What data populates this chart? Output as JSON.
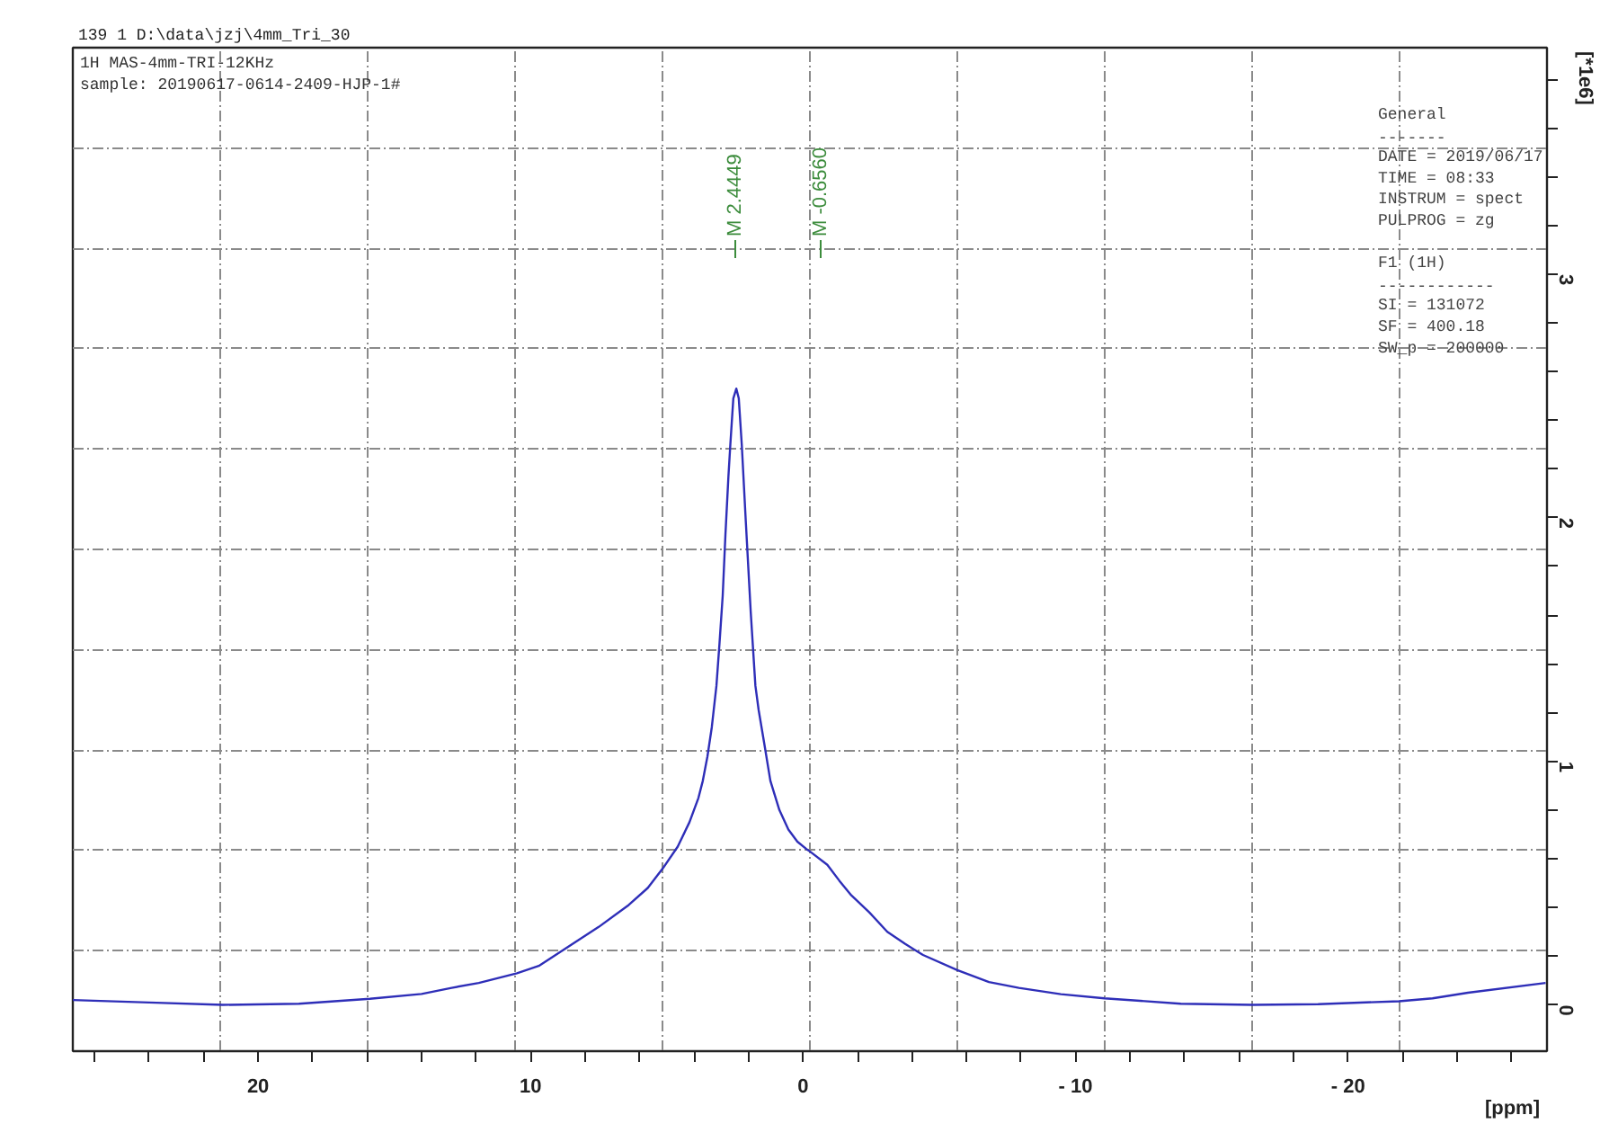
{
  "chart_data": {
    "type": "line",
    "title": "139  1  D:\\data\\jzj\\4mm_Tri_30",
    "subtitle": "1H MAS-4mm-TRI-12KHz\nsample: 20190617-0614-2409-HJP-1#",
    "xlabel": "[ppm]",
    "ylabel": "[*1e6]",
    "annotations": [
      "General\n-------\nDATE = 2019/06/17\nTIME = 08:33\nINSTRUM = spect\nPULPROG = zg",
      "F1 (1H)\n------------\nSI =  131072\nSF =  400.18\nSW_p =  200000",
      "M 2.4449",
      "M -0.6560"
    ],
    "x": [
      26.8,
      24.0,
      21.3,
      18.5,
      15.9,
      14.0,
      12.9,
      11.9,
      10.5,
      9.7,
      8.6,
      7.5,
      6.4,
      5.7,
      5.15,
      4.6,
      4.17,
      3.84,
      3.68,
      3.51,
      3.35,
      3.18,
      3.07,
      2.95,
      2.85,
      2.74,
      2.67,
      2.56,
      2.45,
      2.36,
      2.25,
      2.1,
      1.92,
      1.75,
      1.63,
      1.42,
      1.2,
      0.87,
      0.54,
      0.21,
      -0.12,
      -0.25,
      -0.89,
      -1.33,
      -1.77,
      -2.43,
      -3.09,
      -3.75,
      -4.4,
      -5.66,
      -6.82,
      -7.92,
      -9.46,
      -11.06,
      -13.86,
      -16.49,
      -18.9,
      -21.87,
      -23.1,
      -24.4,
      -27.25
    ],
    "values": [
      0.02,
      0.01,
      0.0,
      0.005,
      0.025,
      0.045,
      0.07,
      0.09,
      0.13,
      0.16,
      0.24,
      0.32,
      0.41,
      0.48,
      0.56,
      0.65,
      0.75,
      0.85,
      0.92,
      1.02,
      1.14,
      1.31,
      1.48,
      1.68,
      1.93,
      2.17,
      2.3,
      2.49,
      2.53,
      2.49,
      2.3,
      1.98,
      1.61,
      1.31,
      1.21,
      1.07,
      0.92,
      0.8,
      0.72,
      0.67,
      0.64,
      0.63,
      0.575,
      0.51,
      0.45,
      0.38,
      0.3,
      0.25,
      0.205,
      0.143,
      0.094,
      0.07,
      0.044,
      0.027,
      0.005,
      0.0,
      0.003,
      0.015,
      0.027,
      0.05,
      0.09
    ],
    "color": "#2e2eb8",
    "xlim": [
      26.8,
      -27.3
    ],
    "ylim": [
      -0.19,
      3.93
    ],
    "xticks": [
      {
        "value": 26,
        "label": null
      },
      {
        "value": 24,
        "label": null
      },
      {
        "value": 22,
        "label": null
      },
      20,
      {
        "value": 18,
        "label": null
      },
      {
        "value": 16,
        "label": null
      },
      {
        "value": 14,
        "label": null
      },
      {
        "value": 12,
        "label": null
      },
      10,
      {
        "value": 8,
        "label": null
      },
      {
        "value": 6,
        "label": null
      },
      {
        "value": 4,
        "label": null
      },
      {
        "value": 2,
        "label": null
      },
      0,
      {
        "value": -2,
        "label": null
      },
      {
        "value": -4,
        "label": null
      },
      {
        "value": -6,
        "label": null
      },
      {
        "value": -8,
        "label": null
      },
      {
        "value": -10,
        "label": "- 10"
      },
      {
        "value": -12,
        "label": null
      },
      {
        "value": -14,
        "label": null
      },
      {
        "value": -16,
        "label": null
      },
      {
        "value": -18,
        "label": null
      },
      {
        "value": -20,
        "label": "- 20"
      },
      {
        "value": -22,
        "label": null
      },
      {
        "value": -24,
        "label": null
      },
      {
        "value": -26,
        "label": null
      }
    ],
    "yticks": [
      0,
      {
        "value": 0.2,
        "label": null
      },
      {
        "value": 0.4,
        "label": null
      },
      {
        "value": 0.6,
        "label": null
      },
      {
        "value": 0.8,
        "label": null
      },
      1,
      {
        "value": 1.2,
        "label": null
      },
      {
        "value": 1.4,
        "label": null
      },
      {
        "value": 1.6,
        "label": null
      },
      {
        "value": 1.8,
        "label": null
      },
      2,
      {
        "value": 2.2,
        "label": null
      },
      {
        "value": 2.4,
        "label": null
      },
      {
        "value": 2.6,
        "label": null
      },
      {
        "value": 2.8,
        "label": null
      },
      3,
      {
        "value": 3.2,
        "label": null
      },
      {
        "value": 3.4,
        "label": null
      },
      {
        "value": 3.6,
        "label": null
      },
      {
        "value": 3.8,
        "label": null
      }
    ],
    "grid": true
  }
}
